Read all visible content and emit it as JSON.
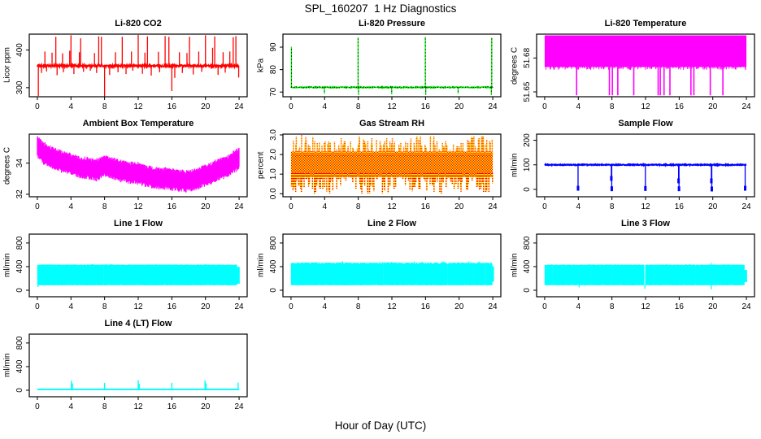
{
  "chart_data": {
    "type": "line",
    "layout": "4x3-grid-of-time-series-panels",
    "title": "SPL_160207  1 Hz Diagnostics",
    "xlabel": "Hour of Day (UTC)",
    "x_ticks": [
      0,
      4,
      8,
      12,
      16,
      20,
      24
    ],
    "xlim": [
      -0.96,
      24.96
    ],
    "grid": false,
    "panels": [
      {
        "id": "li820-co2",
        "title": "Li-820 CO2",
        "ylabel": "Licor ppm",
        "ylim": [
          276,
          442
        ],
        "y_ticks": [
          {
            "v": 300,
            "label": "300"
          },
          {
            "v": 400,
            "label": "400"
          }
        ],
        "series": {
          "kind": "spiky_line",
          "color": "#FF0000",
          "baseline": 358,
          "noise": 2.8,
          "line_width": 1.8,
          "up_spikes": [
            [
              0.9,
              396
            ],
            [
              1.75,
              393
            ],
            [
              2.2,
              435
            ],
            [
              3.0,
              391
            ],
            [
              3.85,
              398
            ],
            [
              4.0,
              439
            ],
            [
              5.0,
              394
            ],
            [
              5.15,
              431
            ],
            [
              6.8,
              392
            ],
            [
              7.3,
              436
            ],
            [
              7.62,
              435
            ],
            [
              9.3,
              394
            ],
            [
              10.1,
              435
            ],
            [
              11.2,
              396
            ],
            [
              12.0,
              440
            ],
            [
              12.8,
              393
            ],
            [
              13.1,
              436
            ],
            [
              14.4,
              395
            ],
            [
              15.2,
              437
            ],
            [
              15.65,
              435
            ],
            [
              16.9,
              394
            ],
            [
              17.8,
              392
            ],
            [
              18.1,
              435
            ],
            [
              19.2,
              396
            ],
            [
              20.0,
              439
            ],
            [
              20.85,
              406
            ],
            [
              21.1,
              436
            ],
            [
              22.1,
              394
            ],
            [
              22.9,
              396
            ],
            [
              23.3,
              434
            ],
            [
              23.62,
              437
            ]
          ],
          "down_spikes": [
            [
              0.12,
              278
            ],
            [
              0.5,
              339
            ],
            [
              1.1,
              343
            ],
            [
              2.35,
              333
            ],
            [
              3.1,
              341
            ],
            [
              4.35,
              336
            ],
            [
              5.5,
              342
            ],
            [
              6.3,
              345
            ],
            [
              7.05,
              339
            ],
            [
              8.0,
              277
            ],
            [
              8.6,
              334
            ],
            [
              9.6,
              341
            ],
            [
              10.55,
              336
            ],
            [
              11.35,
              345
            ],
            [
              12.5,
              337
            ],
            [
              13.55,
              332
            ],
            [
              14.55,
              341
            ],
            [
              16.0,
              291
            ],
            [
              16.35,
              326
            ],
            [
              17.25,
              339
            ],
            [
              18.55,
              335
            ],
            [
              19.55,
              342
            ],
            [
              21.5,
              334
            ],
            [
              22.35,
              340
            ],
            [
              23.95,
              327
            ]
          ]
        }
      },
      {
        "id": "li820-pressure",
        "title": "Li-820 Pressure",
        "ylabel": "kPa",
        "ylim": [
          67.9,
          95.8
        ],
        "y_ticks": [
          {
            "v": 70,
            "label": "70"
          },
          {
            "v": 80,
            "label": "80"
          },
          {
            "v": 90,
            "label": "90"
          }
        ],
        "series": {
          "kind": "spiky_line",
          "color": "#00EE00",
          "baseline": 72.1,
          "noise": 0.22,
          "line_width": 1.6,
          "dotted_overlay": true,
          "up_spikes": [
            [
              0.05,
              90.2
            ],
            [
              7.98,
              94.3
            ],
            [
              15.98,
              94.6
            ],
            [
              23.88,
              94.2
            ]
          ],
          "down_spikes": [
            [
              3.98,
              69.2
            ],
            [
              8.03,
              68.8
            ],
            [
              11.98,
              69.0
            ],
            [
              16.03,
              68.8
            ],
            [
              19.88,
              69.3
            ],
            [
              23.83,
              68.8
            ]
          ]
        }
      },
      {
        "id": "li820-temperature",
        "title": "Li-820 Temperature",
        "ylabel": "degrees C",
        "ylim": [
          51.6457,
          51.7011
        ],
        "y_ticks": [
          {
            "v": 51.65,
            "label": "51.65"
          },
          {
            "v": 51.68,
            "label": "51.68"
          }
        ],
        "series": {
          "kind": "hband_dips",
          "color": "#FF00FF",
          "band": [
            51.672,
            51.7
          ],
          "hair_to": 51.6695,
          "hair_count": 260,
          "dip_x": [
            3.8,
            7.7,
            8.05,
            8.7,
            10.6,
            13.5,
            13.75,
            14.2,
            14.9,
            17.4,
            17.75,
            19.7,
            21.2
          ],
          "dip_y": 51.647
        }
      },
      {
        "id": "ambient-box-temperature",
        "title": "Ambient Box Temperature",
        "ylabel": "degrees C",
        "ylim": [
          31.84,
          35.86
        ],
        "y_ticks": [
          {
            "v": 32,
            "label": "32"
          },
          {
            "v": 34,
            "label": "34"
          }
        ],
        "series": {
          "kind": "wavy_band",
          "color": "#FF00FF",
          "half_width": 0.55,
          "noise": 0.13,
          "keypoints": [
            [
              0,
              35.05
            ],
            [
              0.5,
              34.75
            ],
            [
              1,
              34.55
            ],
            [
              2,
              34.3
            ],
            [
              3,
              34.1
            ],
            [
              4,
              33.95
            ],
            [
              5,
              33.75
            ],
            [
              6,
              33.65
            ],
            [
              7,
              33.55
            ],
            [
              8,
              33.85
            ],
            [
              9,
              33.65
            ],
            [
              10,
              33.5
            ],
            [
              11,
              33.4
            ],
            [
              12,
              33.35
            ],
            [
              13,
              33.15
            ],
            [
              14,
              33.05
            ],
            [
              15,
              33.05
            ],
            [
              16,
              32.95
            ],
            [
              17,
              32.85
            ],
            [
              18,
              32.85
            ],
            [
              19,
              33.0
            ],
            [
              20,
              33.2
            ],
            [
              21,
              33.45
            ],
            [
              22,
              33.65
            ],
            [
              23,
              33.9
            ],
            [
              24,
              34.35
            ]
          ]
        }
      },
      {
        "id": "gas-stream-rh",
        "title": "Gas Stream RH",
        "ylabel": "percent",
        "ylim": [
          -0.154,
          3.04
        ],
        "y_ticks": [
          {
            "v": 0,
            "label": "0.0"
          },
          {
            "v": 1,
            "label": "1.0"
          },
          {
            "v": 2,
            "label": "2.0"
          },
          {
            "v": 3,
            "label": "3.0"
          }
        ],
        "series": {
          "kind": "dither_band",
          "colors": [
            "#FF0000",
            "#FFFF00"
          ],
          "band": [
            0.85,
            2.15
          ],
          "spike_top_max": 3.0,
          "spike_bottom_min": 0.0,
          "spike_count": 190
        }
      },
      {
        "id": "sample-flow",
        "title": "Sample Flow",
        "ylabel": "ml/min",
        "ylim": [
          -30,
          225
        ],
        "y_ticks": [
          {
            "v": 0,
            "label": "0"
          },
          {
            "v": 100,
            "label": "100"
          },
          {
            "v": 200,
            "label": "200"
          }
        ],
        "series": {
          "kind": "spiky_line",
          "color": "#0000FF",
          "baseline": 100,
          "noise": 1.8,
          "line_width": 2,
          "end_dots": true,
          "up_spikes": [
            [
              0.08,
              107
            ],
            [
              10.5,
              106
            ],
            [
              14.2,
              106
            ],
            [
              16.6,
              106
            ],
            [
              20.5,
              106
            ],
            [
              23.3,
              106
            ]
          ],
          "down_spikes": [
            [
              3.97,
              -2
            ],
            [
              7.93,
              38
            ],
            [
              7.98,
              -4
            ],
            [
              11.98,
              -3
            ],
            [
              15.93,
              28
            ],
            [
              15.98,
              -4
            ],
            [
              19.83,
              28
            ],
            [
              19.88,
              -5
            ],
            [
              23.85,
              -2
            ]
          ]
        }
      },
      {
        "id": "line1-flow",
        "title": "Line 1 Flow",
        "ylabel": "ml/min",
        "ylim": [
          -110,
          950
        ],
        "y_ticks": [
          {
            "v": 0,
            "label": "0"
          },
          {
            "v": 400,
            "label": "400"
          },
          {
            "v": 800,
            "label": "800"
          }
        ],
        "series": {
          "kind": "band_gaps",
          "color": "#00FFFF",
          "band": [
            88,
            428
          ],
          "top_noise": 6,
          "x_start": 0.05,
          "x_end": 23.7,
          "gaps": [
            [
              3.9,
              0.07
            ],
            [
              7.9,
              0.07
            ],
            [
              11.9,
              0.07
            ],
            [
              15.87,
              0.07
            ],
            [
              19.83,
              0.07
            ]
          ],
          "under_dips": [
            [
              0.08,
              55
            ]
          ],
          "over_spikes": [],
          "tail": [
            23.82,
            24.0,
            110,
            390
          ]
        }
      },
      {
        "id": "line2-flow",
        "title": "Line 2 Flow",
        "ylabel": "ml/min",
        "ylim": [
          -110,
          950
        ],
        "y_ticks": [
          {
            "v": 0,
            "label": "0"
          },
          {
            "v": 400,
            "label": "400"
          },
          {
            "v": 800,
            "label": "800"
          }
        ],
        "series": {
          "kind": "band_gaps",
          "color": "#00FFFF",
          "band": [
            88,
            455
          ],
          "top_noise": 14,
          "x_start": 0.05,
          "x_end": 23.9,
          "gaps": [
            [
              1.6,
              0.06
            ],
            [
              4.05,
              0.06
            ],
            [
              5.65,
              0.06
            ],
            [
              7.95,
              0.06
            ],
            [
              9.75,
              0.06
            ],
            [
              11.0,
              0.06
            ],
            [
              13.6,
              0.06
            ],
            [
              15.95,
              0.06
            ],
            [
              16.5,
              0.06
            ],
            [
              17.55,
              0.06
            ],
            [
              18.65,
              0.06
            ],
            [
              19.9,
              0.06
            ],
            [
              21.0,
              0.06
            ],
            [
              21.75,
              0.06
            ],
            [
              22.45,
              0.06
            ],
            [
              23.1,
              0.06
            ]
          ],
          "under_dips": [],
          "over_spikes": [],
          "tail": [
            23.93,
            24.08,
            150,
            390
          ]
        }
      },
      {
        "id": "line3-flow",
        "title": "Line 3 Flow",
        "ylabel": "ml/min",
        "ylim": [
          -110,
          950
        ],
        "y_ticks": [
          {
            "v": 0,
            "label": "0"
          },
          {
            "v": 400,
            "label": "400"
          },
          {
            "v": 800,
            "label": "800"
          }
        ],
        "series": {
          "kind": "band_gaps",
          "color": "#00FFFF",
          "band": [
            88,
            428
          ],
          "top_noise": 5,
          "x_start": 0.05,
          "x_end": 23.72,
          "gaps": [
            [
              0.95,
              0.06
            ],
            [
              3.2,
              0.06
            ],
            [
              3.65,
              0.06
            ],
            [
              4.1,
              0.06
            ],
            [
              4.75,
              0.06
            ],
            [
              5.45,
              0.06
            ],
            [
              6.1,
              0.06
            ],
            [
              7.95,
              0.06
            ],
            [
              9.0,
              0.06
            ],
            [
              11.9,
              0.18
            ],
            [
              12.35,
              0.06
            ],
            [
              13.0,
              0.06
            ],
            [
              15.9,
              0.06
            ],
            [
              16.5,
              0.06
            ],
            [
              17.2,
              0.06
            ],
            [
              17.95,
              0.06
            ],
            [
              18.5,
              0.06
            ],
            [
              19.8,
              0.06
            ],
            [
              20.8,
              0.06
            ]
          ],
          "under_dips": [
            [
              11.92,
              25
            ],
            [
              19.82,
              18
            ],
            [
              4.1,
              48
            ]
          ],
          "over_spikes": [
            [
              19.78,
              462
            ]
          ],
          "tail": [
            23.82,
            24.0,
            140,
            340
          ]
        }
      },
      {
        "id": "line4-lt-flow",
        "title": "Line 4 (LT) Flow",
        "ylabel": "ml/min",
        "ylim": [
          -110,
          950
        ],
        "y_ticks": [
          {
            "v": 0,
            "label": "0"
          },
          {
            "v": 400,
            "label": "400"
          },
          {
            "v": 800,
            "label": "800"
          }
        ],
        "series": {
          "kind": "base_spikes",
          "color": "#00FFFF",
          "band": [
            0,
            26
          ],
          "spikes": [
            [
              4.05,
              162
            ],
            [
              4.17,
              118
            ],
            [
              8.0,
              126
            ],
            [
              12.0,
              170
            ],
            [
              12.12,
              108
            ],
            [
              16.0,
              126
            ],
            [
              19.95,
              166
            ],
            [
              20.08,
              118
            ],
            [
              23.88,
              130
            ]
          ]
        }
      }
    ]
  }
}
